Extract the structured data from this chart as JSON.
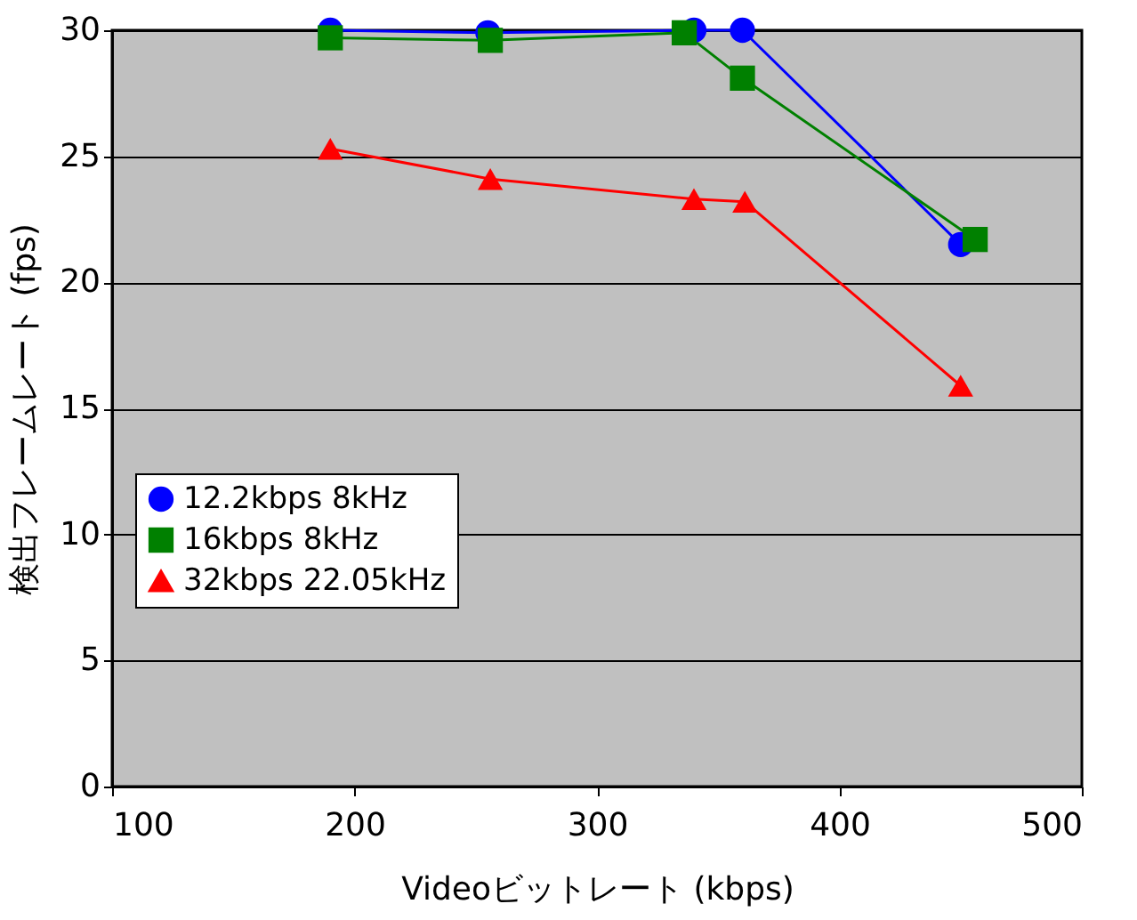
{
  "chart_data": {
    "type": "line",
    "xlabel": "Videoビットレート (kbps)",
    "ylabel": "検出フレームレート (fps)",
    "xlim": [
      100,
      500
    ],
    "xticks": [
      100,
      200,
      300,
      400,
      500
    ],
    "ylim": [
      0,
      30
    ],
    "yticks": [
      0,
      5,
      10,
      15,
      20,
      25,
      30
    ],
    "grid": "y",
    "legend": "bottom left",
    "line_style": "solid",
    "series": [
      {
        "name": "12.2kbps 8kHz",
        "color": "#0000ff",
        "marker": "circle",
        "x": [
          190,
          255,
          340,
          360,
          450
        ],
        "values": [
          30,
          29.9,
          30,
          30,
          21.5
        ]
      },
      {
        "name": "16kbps 8kHz",
        "color": "#008000",
        "marker": "square",
        "x": [
          190,
          256,
          336,
          360,
          456
        ],
        "values": [
          29.7,
          29.6,
          29.9,
          28.1,
          21.7
        ]
      },
      {
        "name": "32kbps 22.05kHz",
        "color": "#ff0000",
        "marker": "triangle",
        "x": [
          190,
          256,
          340,
          361,
          450
        ],
        "values": [
          25.3,
          24.1,
          23.3,
          23.2,
          15.9
        ]
      }
    ]
  }
}
